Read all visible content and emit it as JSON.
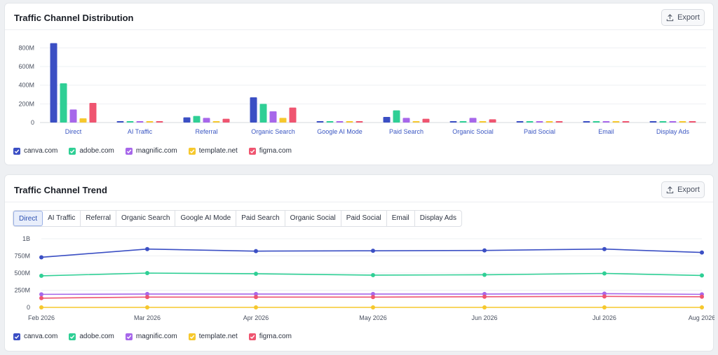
{
  "colors": {
    "canva.com": "#3b4fc4",
    "adobe.com": "#2fcf95",
    "magnific.com": "#a767ea",
    "template.net": "#f6c82d",
    "figma.com": "#ef5570"
  },
  "distribution": {
    "title": "Traffic Channel Distribution",
    "export_label": "Export"
  },
  "trend": {
    "title": "Traffic Channel Trend",
    "export_label": "Export",
    "tabs": [
      "Direct",
      "AI Traffic",
      "Referral",
      "Organic Search",
      "Google AI Mode",
      "Paid Search",
      "Organic Social",
      "Paid Social",
      "Email",
      "Display Ads"
    ],
    "active_tab": "Direct"
  },
  "legend_labels": [
    "canva.com",
    "adobe.com",
    "magnific.com",
    "template.net",
    "figma.com"
  ],
  "chart_data": [
    {
      "type": "bar",
      "title": "Traffic Channel Distribution",
      "categories": [
        "Direct",
        "AI Traffic",
        "Referral",
        "Organic Search",
        "Google AI Mode",
        "Paid Search",
        "Organic Social",
        "Paid Social",
        "Email",
        "Display Ads"
      ],
      "y_ticks": [
        0,
        200000000,
        400000000,
        600000000,
        800000000
      ],
      "y_tick_labels": [
        "0",
        "200M",
        "400M",
        "600M",
        "800M"
      ],
      "ylim": [
        0,
        900000000
      ],
      "grid": true,
      "legend_position": "bottom-left",
      "series": [
        {
          "name": "canva.com",
          "values": [
            850000000,
            5000000,
            55000000,
            270000000,
            8000000,
            60000000,
            15000000,
            15000000,
            15000000,
            15000000
          ]
        },
        {
          "name": "adobe.com",
          "values": [
            420000000,
            5000000,
            70000000,
            200000000,
            5000000,
            130000000,
            15000000,
            15000000,
            15000000,
            15000000
          ]
        },
        {
          "name": "magnific.com",
          "values": [
            140000000,
            5000000,
            50000000,
            120000000,
            5000000,
            50000000,
            50000000,
            15000000,
            15000000,
            15000000
          ]
        },
        {
          "name": "template.net",
          "values": [
            45000000,
            5000000,
            15000000,
            50000000,
            5000000,
            15000000,
            5000000,
            5000000,
            5000000,
            5000000
          ]
        },
        {
          "name": "figma.com",
          "values": [
            210000000,
            5000000,
            40000000,
            160000000,
            5000000,
            40000000,
            35000000,
            8000000,
            8000000,
            8000000
          ]
        }
      ]
    },
    {
      "type": "line",
      "title": "Traffic Channel Trend",
      "x": [
        "Feb 2026",
        "Mar 2026",
        "Apr 2026",
        "May 2026",
        "Jun 2026",
        "Jul 2026",
        "Aug 2026"
      ],
      "y_ticks": [
        0,
        250000000,
        500000000,
        750000000,
        1000000000
      ],
      "y_tick_labels": [
        "0",
        "250M",
        "500M",
        "750M",
        "1B"
      ],
      "ylim": [
        0,
        1000000000
      ],
      "grid": true,
      "legend_position": "bottom-left",
      "series": [
        {
          "name": "canva.com",
          "values": [
            730000000,
            850000000,
            820000000,
            825000000,
            830000000,
            850000000,
            800000000
          ]
        },
        {
          "name": "adobe.com",
          "values": [
            460000000,
            500000000,
            490000000,
            470000000,
            475000000,
            495000000,
            465000000
          ]
        },
        {
          "name": "magnific.com",
          "values": [
            190000000,
            195000000,
            195000000,
            195000000,
            195000000,
            200000000,
            190000000
          ]
        },
        {
          "name": "template.net",
          "values": [
            0,
            0,
            0,
            0,
            0,
            0,
            0
          ]
        },
        {
          "name": "figma.com",
          "values": [
            135000000,
            150000000,
            150000000,
            150000000,
            155000000,
            160000000,
            155000000
          ]
        }
      ]
    }
  ]
}
